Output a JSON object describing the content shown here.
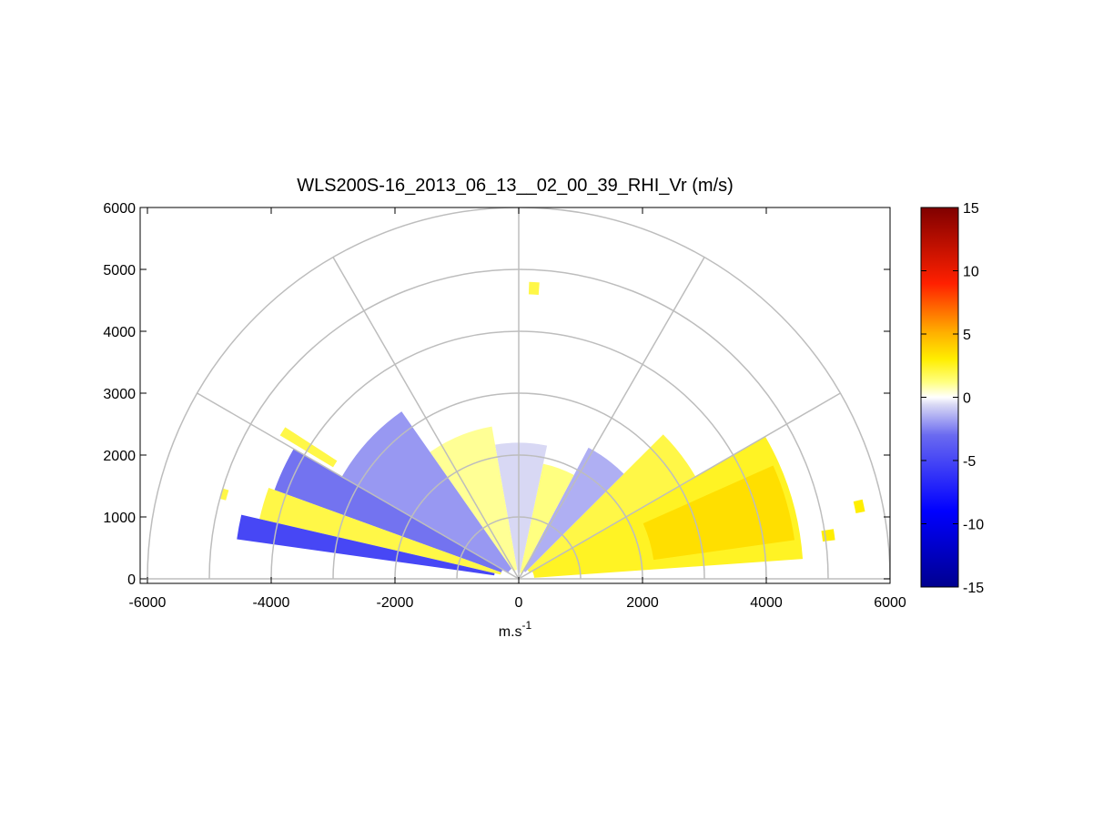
{
  "chart_data": {
    "type": "heatmap",
    "subtype": "polar RHI scan",
    "title": "WLS200S-16_2013_06_13__02_00_39_RHI_Vr (m/s)",
    "xlabel": "m.s",
    "xlabel_superscript": "-1",
    "ylabel": "",
    "xlim": [
      -6000,
      6000
    ],
    "ylim": [
      0,
      6000
    ],
    "xticks": [
      -6000,
      -4000,
      -2000,
      0,
      2000,
      4000,
      6000
    ],
    "yticks": [
      0,
      1000,
      2000,
      3000,
      4000,
      5000,
      6000
    ],
    "range_rings": [
      1000,
      2000,
      3000,
      4000,
      5000,
      6000
    ],
    "spoke_angles_deg": [
      0,
      30,
      60,
      90,
      120,
      150,
      180
    ],
    "grid": true,
    "colorbar": {
      "range": [
        -15,
        15
      ],
      "ticks": [
        15,
        10,
        5,
        0,
        -5,
        -10,
        -15
      ],
      "colormap": "blue-white-yellow-red",
      "location": "right"
    },
    "sectors": [
      {
        "az_from": 4,
        "az_to": 30,
        "r_from": 250,
        "r_to": 4600,
        "vr": 2.5
      },
      {
        "az_from": 8,
        "az_to": 24,
        "r_from": 2200,
        "r_to": 4500,
        "vr": 3.5
      },
      {
        "az_from": 30,
        "az_to": 45,
        "r_from": 200,
        "r_to": 3300,
        "vr": 2.0
      },
      {
        "az_from": 45,
        "az_to": 62,
        "r_from": 150,
        "r_to": 2400,
        "vr": -1.5
      },
      {
        "az_from": 62,
        "az_to": 78,
        "r_from": 100,
        "r_to": 1900,
        "vr": 1.2
      },
      {
        "az_from": 78,
        "az_to": 100,
        "r_from": 100,
        "r_to": 2200,
        "vr": -0.6
      },
      {
        "az_from": 100,
        "az_to": 125,
        "r_from": 150,
        "r_to": 2500,
        "vr": 1.0
      },
      {
        "az_from": 125,
        "az_to": 150,
        "r_from": 200,
        "r_to": 3300,
        "vr": -2.0
      },
      {
        "az_from": 150,
        "az_to": 160,
        "r_from": 300,
        "r_to": 4200,
        "vr": -2.8
      },
      {
        "az_from": 160,
        "az_to": 167,
        "r_from": 300,
        "r_to": 4300,
        "vr": 2.0
      },
      {
        "az_from": 167,
        "az_to": 172,
        "r_from": 400,
        "r_to": 4600,
        "vr": -5.0
      },
      {
        "az_from": 147,
        "az_to": 149,
        "r_from": 3500,
        "r_to": 4500,
        "vr": 2.0
      },
      {
        "az_from": 86,
        "az_to": 88,
        "r_from": 4600,
        "r_to": 4800,
        "vr": 2.0
      },
      {
        "az_from": 7,
        "az_to": 9,
        "r_from": 4950,
        "r_to": 5150,
        "vr": 3.0
      },
      {
        "az_from": 11,
        "az_to": 13,
        "r_from": 5550,
        "r_to": 5700,
        "vr": 3.0
      },
      {
        "az_from": 163,
        "az_to": 165,
        "r_from": 4900,
        "r_to": 5000,
        "vr": 2.0
      }
    ]
  }
}
